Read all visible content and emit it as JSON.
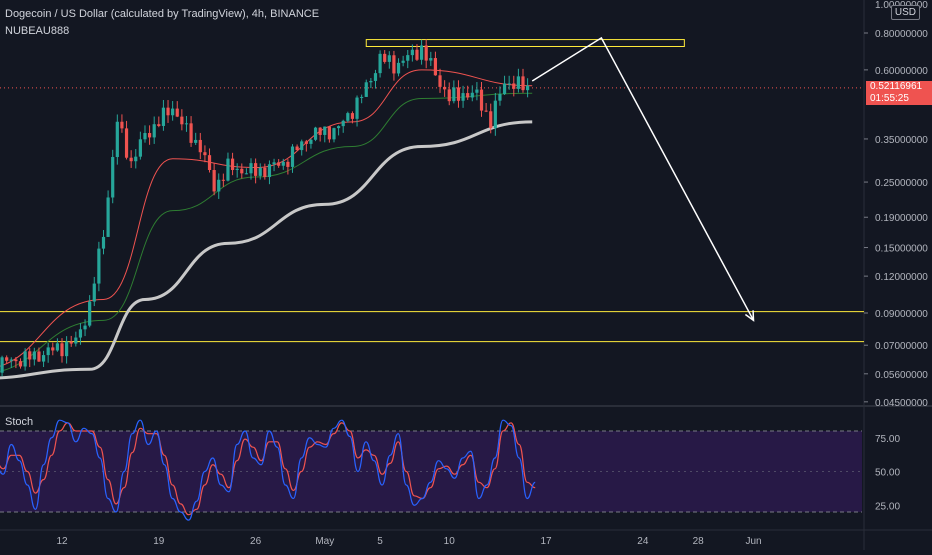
{
  "header": {
    "title": "Dogecoin / US Dollar (calculated by TradingView), 4h, BINANCE",
    "author": "NUBEAU888"
  },
  "price_axis": {
    "currency": "USD",
    "top_label": "1.00000000",
    "ticks": [
      "0.80000000",
      "0.60000000",
      "0.35000000",
      "0.25000000",
      "0.19000000",
      "0.15000000",
      "0.12000000",
      "0.09000000",
      "0.07000000",
      "0.05600000",
      "0.04500000"
    ],
    "current_price": "0.52116961",
    "countdown": "01:55:25"
  },
  "time_axis": {
    "ticks": [
      "12",
      "19",
      "26",
      "May",
      "5",
      "10",
      "17",
      "24",
      "28",
      "Jun"
    ]
  },
  "indicator": {
    "name": "Stoch",
    "ticks": [
      "75.00",
      "50.00",
      "25.00"
    ]
  },
  "colors": {
    "background": "#131722",
    "up_candle": "#26a69a",
    "down_candle": "#ef5350",
    "ma_fast": "#ef5350",
    "ma_mid": "#2e7d32",
    "ma_slow": "#c8c8c8",
    "zone": "#ffeb3b",
    "projection": "#ffffff",
    "stoch_k": "#2962ff",
    "stoch_d": "#ef5350",
    "stoch_band": "#2a1a4a"
  },
  "chart_data": {
    "type": "candlestick",
    "title": "Dogecoin / US Dollar (calculated by TradingView), 4h, BINANCE",
    "scale": "log",
    "ylim": [
      0.045,
      1.0
    ],
    "price_path": [
      {
        "x": "Apr 06",
        "y": 0.059
      },
      {
        "x": "Apr 10",
        "y": 0.064
      },
      {
        "x": "Apr 13",
        "y": 0.072
      },
      {
        "x": "Apr 14",
        "y": 0.095
      },
      {
        "x": "Apr 15",
        "y": 0.17
      },
      {
        "x": "Apr 16",
        "y": 0.4
      },
      {
        "x": "Apr 17",
        "y": 0.29
      },
      {
        "x": "Apr 18",
        "y": 0.36
      },
      {
        "x": "Apr 19",
        "y": 0.4
      },
      {
        "x": "Apr 20",
        "y": 0.45
      },
      {
        "x": "Apr 21",
        "y": 0.37
      },
      {
        "x": "Apr 22",
        "y": 0.33
      },
      {
        "x": "Apr 23",
        "y": 0.24
      },
      {
        "x": "Apr 24",
        "y": 0.28
      },
      {
        "x": "Apr 26",
        "y": 0.27
      },
      {
        "x": "Apr 28",
        "y": 0.29
      },
      {
        "x": "Apr 30",
        "y": 0.36
      },
      {
        "x": "May 02",
        "y": 0.38
      },
      {
        "x": "May 03",
        "y": 0.44
      },
      {
        "x": "May 04",
        "y": 0.52
      },
      {
        "x": "May 05",
        "y": 0.66
      },
      {
        "x": "May 06",
        "y": 0.62
      },
      {
        "x": "May 07",
        "y": 0.66
      },
      {
        "x": "May 08",
        "y": 0.71
      },
      {
        "x": "May 09",
        "y": 0.58
      },
      {
        "x": "May 10",
        "y": 0.48
      },
      {
        "x": "May 11",
        "y": 0.5
      },
      {
        "x": "May 12",
        "y": 0.49
      },
      {
        "x": "May 13",
        "y": 0.4
      },
      {
        "x": "May 14",
        "y": 0.55
      },
      {
        "x": "May 15",
        "y": 0.53
      },
      {
        "x": "May 16",
        "y": 0.52
      }
    ],
    "moving_averages": [
      {
        "color": "ma_fast",
        "points": [
          {
            "x": "Apr 06",
            "y": 0.058
          },
          {
            "x": "Apr 15",
            "y": 0.1
          },
          {
            "x": "Apr 20",
            "y": 0.3
          },
          {
            "x": "Apr 26",
            "y": 0.28
          },
          {
            "x": "May 03",
            "y": 0.4
          },
          {
            "x": "May 08",
            "y": 0.6
          },
          {
            "x": "May 16",
            "y": 0.53
          }
        ]
      },
      {
        "color": "ma_mid",
        "points": [
          {
            "x": "Apr 06",
            "y": 0.056
          },
          {
            "x": "Apr 15",
            "y": 0.085
          },
          {
            "x": "Apr 20",
            "y": 0.2
          },
          {
            "x": "Apr 26",
            "y": 0.26
          },
          {
            "x": "May 03",
            "y": 0.33
          },
          {
            "x": "May 08",
            "y": 0.48
          },
          {
            "x": "May 16",
            "y": 0.5
          }
        ]
      },
      {
        "color": "ma_slow",
        "points": [
          {
            "x": "Apr 06",
            "y": 0.054
          },
          {
            "x": "Apr 14",
            "y": 0.058
          },
          {
            "x": "Apr 18",
            "y": 0.1
          },
          {
            "x": "Apr 24",
            "y": 0.155
          },
          {
            "x": "May 01",
            "y": 0.21
          },
          {
            "x": "May 08",
            "y": 0.33
          },
          {
            "x": "May 16",
            "y": 0.4
          }
        ]
      }
    ],
    "zones": [
      {
        "name": "resistance",
        "from": 0.72,
        "to": 0.76,
        "x_from": "May 04",
        "x_to": "May 27"
      },
      {
        "name": "support-upper",
        "y": 0.091
      },
      {
        "name": "support-lower",
        "y": 0.072
      }
    ],
    "projection_path": [
      {
        "x": "May 16",
        "y": 0.55
      },
      {
        "x": "May 21",
        "y": 0.77
      },
      {
        "x": "Jun 01",
        "y": 0.085
      }
    ],
    "stoch_k": [
      50,
      62,
      55,
      48,
      70,
      58,
      40,
      22,
      55,
      75,
      88,
      86,
      72,
      82,
      78,
      60,
      30,
      20,
      50,
      78,
      88,
      70,
      80,
      55,
      30,
      20,
      14,
      28,
      50,
      60,
      40,
      35,
      70,
      80,
      60,
      55,
      80,
      68,
      40,
      30,
      60,
      75,
      70,
      68,
      82,
      88,
      76,
      50,
      72,
      58,
      40,
      62,
      78,
      40,
      25,
      30,
      42,
      58,
      52,
      45,
      60,
      65,
      30,
      40,
      60,
      88,
      84,
      60,
      30,
      42
    ],
    "stoch_d": [
      48,
      56,
      58,
      52,
      62,
      62,
      50,
      34,
      44,
      62,
      80,
      86,
      80,
      80,
      80,
      68,
      44,
      26,
      38,
      64,
      82,
      78,
      78,
      62,
      40,
      26,
      18,
      22,
      40,
      55,
      48,
      38,
      58,
      74,
      68,
      58,
      72,
      72,
      52,
      36,
      50,
      68,
      72,
      70,
      78,
      86,
      80,
      60,
      66,
      62,
      48,
      56,
      72,
      50,
      32,
      30,
      38,
      52,
      54,
      48,
      55,
      62,
      42,
      38,
      52,
      80,
      86,
      70,
      42,
      38
    ]
  }
}
